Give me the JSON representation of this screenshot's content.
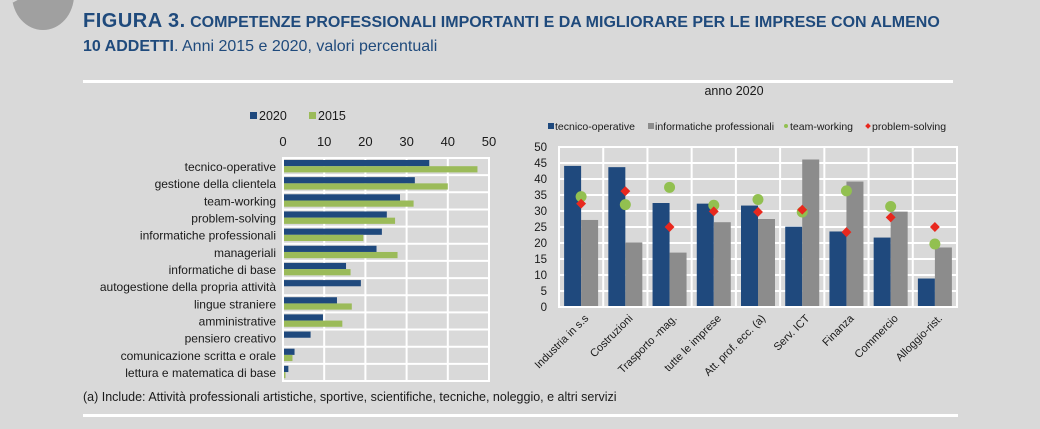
{
  "header": {
    "figure_label": "FIGURA 3.",
    "title_line1": " COMPETENZE PROFESSIONALI IMPORTANTI E DA MIGLIORARE PER LE IMPRESE CON ALMENO",
    "title_line2_bold": "10 ADDETTI",
    "title_line2_rest": ". Anni 2015 e 2020, valori percentuali"
  },
  "footnote": "(a) Include: Attività professionali artistiche, sportive, scientifiche, tecniche, noleggio, e altri servizi",
  "colors": {
    "navy": "#1f497d",
    "green": "#9bbb59",
    "gray": "#8c8c8c",
    "red": "#e8281e",
    "teamworking": "#92c050",
    "text": "#1a1a1a",
    "grid": "#ffffff"
  },
  "chart_data": [
    {
      "type": "bar",
      "orientation": "horizontal",
      "title": "",
      "xlabel": "",
      "ylabel": "",
      "xlim": [
        0,
        50
      ],
      "xticks": [
        0,
        10,
        20,
        30,
        40,
        50
      ],
      "grid": true,
      "legend_position": "top",
      "categories": [
        "tecnico-operative",
        "gestione della clientela",
        "team-working",
        "problem-solving",
        "informatiche professionali",
        "manageriali",
        "informatiche di base",
        "autogestione della propria attività",
        "lingue straniere",
        "amministrative",
        "pensiero creativo",
        "comunicazione scritta e orale",
        "lettura e matematica di base"
      ],
      "series": [
        {
          "name": "2020",
          "color": "#1f497d",
          "values": [
            35.5,
            32.0,
            28.4,
            25.2,
            24.0,
            22.7,
            15.3,
            18.9,
            13.1,
            9.7,
            6.7,
            2.8,
            1.3
          ]
        },
        {
          "name": "2015",
          "color": "#9bbb59",
          "values": [
            47.2,
            40.0,
            31.7,
            27.2,
            19.5,
            27.8,
            16.4,
            null,
            16.7,
            14.4,
            null,
            2.3,
            0.6
          ]
        }
      ]
    },
    {
      "type": "bar",
      "title": "anno 2020",
      "xlabel": "",
      "ylabel": "",
      "ylim": [
        0,
        50
      ],
      "yticks": [
        0,
        5,
        10,
        15,
        20,
        25,
        30,
        35,
        40,
        45,
        50
      ],
      "grid": true,
      "legend_position": "top",
      "categories": [
        "Industria in s.s",
        "Costruzioni",
        "Trasporto -mag.",
        "tutte le imprese",
        "Att. prof. ecc. (a)",
        "Serv. ICT",
        "Finanza",
        "Commercio",
        "Alloggio-rist."
      ],
      "series": [
        {
          "name": "tecnico-operative",
          "kind": "bar",
          "color": "#1f497d",
          "values": [
            44.1,
            43.7,
            32.5,
            32.3,
            31.7,
            25.1,
            23.6,
            21.7,
            8.9
          ]
        },
        {
          "name": "informatiche professionali",
          "kind": "bar",
          "color": "#8c8c8c",
          "values": [
            27.2,
            20.2,
            17.0,
            26.5,
            27.5,
            46.1,
            39.2,
            29.8,
            18.6
          ]
        },
        {
          "name": "team-working",
          "kind": "marker-circle",
          "color": "#92c050",
          "values": [
            34.5,
            32.0,
            37.4,
            31.8,
            33.6,
            29.7,
            36.3,
            31.4,
            19.7
          ]
        },
        {
          "name": "problem-solving",
          "kind": "marker-diamond",
          "color": "#e8281e",
          "values": [
            32.3,
            36.2,
            25.0,
            29.9,
            29.7,
            30.4,
            23.4,
            28.0,
            25.0
          ]
        }
      ]
    }
  ]
}
